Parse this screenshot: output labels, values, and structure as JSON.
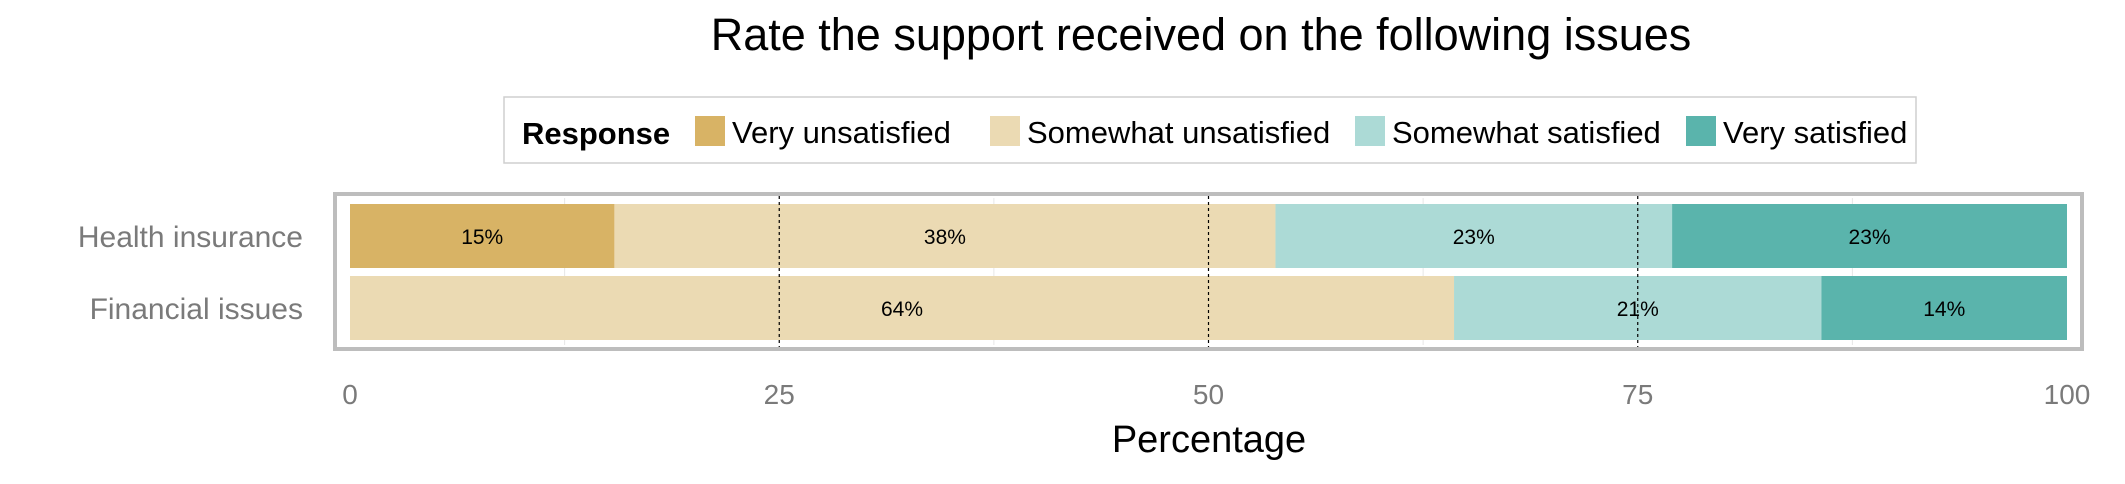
{
  "chart_data": {
    "type": "bar",
    "orientation": "horizontal",
    "stacked": true,
    "title": "Rate the support received on the following issues",
    "xlabel": "Percentage",
    "ylabel": "",
    "xlim": [
      0,
      100
    ],
    "x_ticks": [
      "0",
      "25",
      "50",
      "75",
      "100"
    ],
    "reference_lines": [
      25,
      50,
      75
    ],
    "legend": {
      "title": "Response",
      "position": "top",
      "entries": [
        "Very unsatisfied",
        "Somewhat unsatisfied",
        "Somewhat satisfied",
        "Very satisfied"
      ]
    },
    "categories": [
      "Health insurance",
      "Financial issues"
    ],
    "series": [
      {
        "name": "Very unsatisfied",
        "color": "#d8b365",
        "values": [
          15.4,
          0
        ],
        "labels": [
          "15%",
          ""
        ]
      },
      {
        "name": "Somewhat unsatisfied",
        "color": "#ebdab3",
        "values": [
          38.5,
          64.3
        ],
        "labels": [
          "38%",
          "64%"
        ]
      },
      {
        "name": "Somewhat satisfied",
        "color": "#acdad6",
        "values": [
          23.1,
          21.4
        ],
        "labels": [
          "23%",
          "21%"
        ]
      },
      {
        "name": "Very satisfied",
        "color": "#5ab4ac",
        "values": [
          23.0,
          14.3
        ],
        "labels": [
          "23%",
          "14%"
        ]
      }
    ]
  }
}
